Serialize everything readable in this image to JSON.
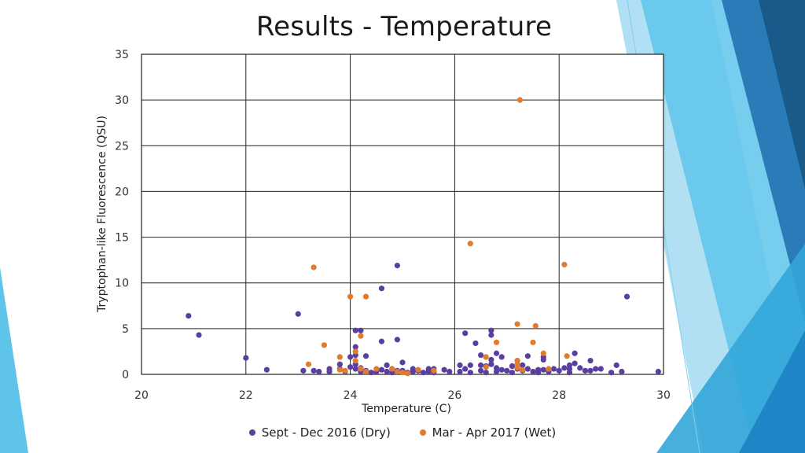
{
  "slide": {
    "title": "Results - Temperature",
    "accent_colors": [
      "#1a5a8a",
      "#2b7bb9",
      "#33a6d9",
      "#5ec4ea",
      "#a8ddf3"
    ]
  },
  "chart_data": {
    "type": "scatter",
    "title": "",
    "xlabel": "Temperature (C)",
    "ylabel": "Tryptophan-like Fluorescence (QSU)",
    "xlim": [
      20,
      30
    ],
    "ylim": [
      0,
      35
    ],
    "xticks": [
      20,
      22,
      24,
      26,
      28,
      30
    ],
    "yticks": [
      0,
      5,
      10,
      15,
      20,
      25,
      30,
      35
    ],
    "grid": true,
    "legend_position": "bottom",
    "series": [
      {
        "name": "Sept - Dec 2016 (Dry)",
        "color": "#5a3fa0",
        "points": [
          [
            20.9,
            6.4
          ],
          [
            21.1,
            4.3
          ],
          [
            22.0,
            1.8
          ],
          [
            22.4,
            0.5
          ],
          [
            23.0,
            6.6
          ],
          [
            23.1,
            0.4
          ],
          [
            23.3,
            0.4
          ],
          [
            23.4,
            0.3
          ],
          [
            23.6,
            0.6
          ],
          [
            23.6,
            0.3
          ],
          [
            23.8,
            1.1
          ],
          [
            23.8,
            0.6
          ],
          [
            23.9,
            0.3
          ],
          [
            24.0,
            1.9
          ],
          [
            24.0,
            0.8
          ],
          [
            24.1,
            4.8
          ],
          [
            24.1,
            3.0
          ],
          [
            24.1,
            2.1
          ],
          [
            24.1,
            1.1
          ],
          [
            24.1,
            0.6
          ],
          [
            24.2,
            4.8
          ],
          [
            24.2,
            0.7
          ],
          [
            24.2,
            0.3
          ],
          [
            24.3,
            2.0
          ],
          [
            24.3,
            0.4
          ],
          [
            24.4,
            0.2
          ],
          [
            24.5,
            0.3
          ],
          [
            24.6,
            9.4
          ],
          [
            24.6,
            3.6
          ],
          [
            24.6,
            0.5
          ],
          [
            24.7,
            1.0
          ],
          [
            24.7,
            0.3
          ],
          [
            24.8,
            0.6
          ],
          [
            24.8,
            0.2
          ],
          [
            24.9,
            11.9
          ],
          [
            24.9,
            3.8
          ],
          [
            24.9,
            0.4
          ],
          [
            25.0,
            1.3
          ],
          [
            25.0,
            0.4
          ],
          [
            25.1,
            0.2
          ],
          [
            25.2,
            0.6
          ],
          [
            25.2,
            0.3
          ],
          [
            25.3,
            0.4
          ],
          [
            25.4,
            0.2
          ],
          [
            25.5,
            0.3
          ],
          [
            25.5,
            0.6
          ],
          [
            25.6,
            0.6
          ],
          [
            25.6,
            0.2
          ],
          [
            25.8,
            0.5
          ],
          [
            25.9,
            0.3
          ],
          [
            26.1,
            0.3
          ],
          [
            26.1,
            1.0
          ],
          [
            26.2,
            4.5
          ],
          [
            26.2,
            0.6
          ],
          [
            26.3,
            0.2
          ],
          [
            26.3,
            1.0
          ],
          [
            26.4,
            3.4
          ],
          [
            26.5,
            2.1
          ],
          [
            26.5,
            1.0
          ],
          [
            26.5,
            0.4
          ],
          [
            26.6,
            0.9
          ],
          [
            26.6,
            0.2
          ],
          [
            26.7,
            4.8
          ],
          [
            26.7,
            4.3
          ],
          [
            26.7,
            1.6
          ],
          [
            26.7,
            1.1
          ],
          [
            26.8,
            2.3
          ],
          [
            26.8,
            0.7
          ],
          [
            26.8,
            0.3
          ],
          [
            26.9,
            1.9
          ],
          [
            26.9,
            0.5
          ],
          [
            27.0,
            0.4
          ],
          [
            27.1,
            0.9
          ],
          [
            27.1,
            0.2
          ],
          [
            27.2,
            1.5
          ],
          [
            27.2,
            0.6
          ],
          [
            27.3,
            1.0
          ],
          [
            27.3,
            0.4
          ],
          [
            27.4,
            2.0
          ],
          [
            27.4,
            0.6
          ],
          [
            27.5,
            0.3
          ],
          [
            27.6,
            0.5
          ],
          [
            27.6,
            0.2
          ],
          [
            27.7,
            1.9
          ],
          [
            27.7,
            1.6
          ],
          [
            27.7,
            0.5
          ],
          [
            27.8,
            0.3
          ],
          [
            27.9,
            0.6
          ],
          [
            28.0,
            0.4
          ],
          [
            28.1,
            0.7
          ],
          [
            28.2,
            1.0
          ],
          [
            28.2,
            0.6
          ],
          [
            28.2,
            0.2
          ],
          [
            28.3,
            2.3
          ],
          [
            28.3,
            1.2
          ],
          [
            28.4,
            0.7
          ],
          [
            28.5,
            0.4
          ],
          [
            28.6,
            1.5
          ],
          [
            28.6,
            0.4
          ],
          [
            28.7,
            0.6
          ],
          [
            28.8,
            0.6
          ],
          [
            29.0,
            0.2
          ],
          [
            29.1,
            1.0
          ],
          [
            29.2,
            0.3
          ],
          [
            29.3,
            8.5
          ],
          [
            29.9,
            0.3
          ]
        ]
      },
      {
        "name": "Mar - Apr 2017 (Wet)",
        "color": "#e07b30",
        "points": [
          [
            23.2,
            1.1
          ],
          [
            23.3,
            11.7
          ],
          [
            23.5,
            3.2
          ],
          [
            23.8,
            1.9
          ],
          [
            23.8,
            0.5
          ],
          [
            23.9,
            0.4
          ],
          [
            24.0,
            8.5
          ],
          [
            24.1,
            2.5
          ],
          [
            24.1,
            1.5
          ],
          [
            24.2,
            4.2
          ],
          [
            24.2,
            0.6
          ],
          [
            24.3,
            8.5
          ],
          [
            24.3,
            0.3
          ],
          [
            24.5,
            0.6
          ],
          [
            24.8,
            0.6
          ],
          [
            24.9,
            0.3
          ],
          [
            25.0,
            0.2
          ],
          [
            25.1,
            0.1
          ],
          [
            25.3,
            0.5
          ],
          [
            25.6,
            0.4
          ],
          [
            26.3,
            14.3
          ],
          [
            26.6,
            1.9
          ],
          [
            26.6,
            0.8
          ],
          [
            26.8,
            3.5
          ],
          [
            27.2,
            5.5
          ],
          [
            27.2,
            1.5
          ],
          [
            27.2,
            1.1
          ],
          [
            27.2,
            0.7
          ],
          [
            27.25,
            30.0
          ],
          [
            27.3,
            0.5
          ],
          [
            27.5,
            3.5
          ],
          [
            27.55,
            5.3
          ],
          [
            27.7,
            2.3
          ],
          [
            27.8,
            0.6
          ],
          [
            28.1,
            12.0
          ],
          [
            28.15,
            2.0
          ]
        ]
      }
    ]
  }
}
